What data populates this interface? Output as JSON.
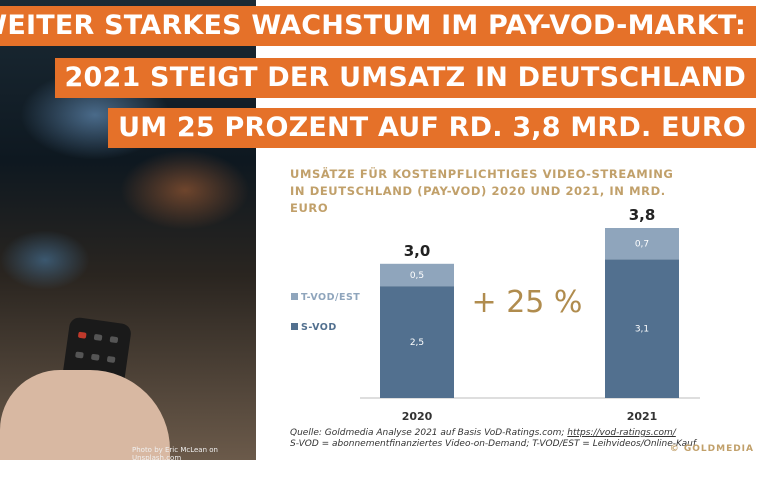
{
  "headline": {
    "line1": "WEITER STARKES WACHSTUM IM PAY-VOD-MARKT:",
    "line2": "2021 STEIGT DER UMSATZ IN DEUTSCHLAND",
    "line3": "UM 25 PROZENT AUF RD. 3,8 MRD. EURO"
  },
  "photo": {
    "credit": "Photo by Eric McLean on Unsplash.com"
  },
  "chart_data": {
    "type": "bar",
    "stacked": true,
    "title": "UMSÄTZE FÜR KOSTENPFLICHTIGES VIDEO-STREAMING IN DEUTSCHLAND (PAY-VOD) 2020 UND 2021, IN MRD. EURO",
    "categories": [
      "2020",
      "2021"
    ],
    "series": [
      {
        "name": "S-VOD",
        "values": [
          2.5,
          3.1
        ],
        "labels": [
          "2,5",
          "3,1"
        ],
        "color": "#52708f"
      },
      {
        "name": "T-VOD/EST",
        "values": [
          0.5,
          0.7
        ],
        "labels": [
          "0,5",
          "0,7"
        ],
        "color": "#8fa5bc"
      }
    ],
    "totals": [
      "3,0",
      "3,8"
    ],
    "annotation": "+ 25 %",
    "ylim": [
      0,
      3.8
    ],
    "legend_position": "left",
    "xlabel": "",
    "ylabel": ""
  },
  "source": {
    "line1_prefix": "Quelle: Goldmedia Analyse 2021 auf Basis VoD-Ratings.com;",
    "line1_link": "https://vod-ratings.com/",
    "line2": "S-VOD = abonnementfinanziertes Video-on-Demand; T-VOD/EST = Leihvideos/Online-Kauf"
  },
  "brand": "© GOLDMEDIA",
  "colors": {
    "accent_orange": "#e57129",
    "gold": "#c1a06a",
    "svod_blue": "#52708f",
    "tvod_blue": "#8fa5bc"
  }
}
